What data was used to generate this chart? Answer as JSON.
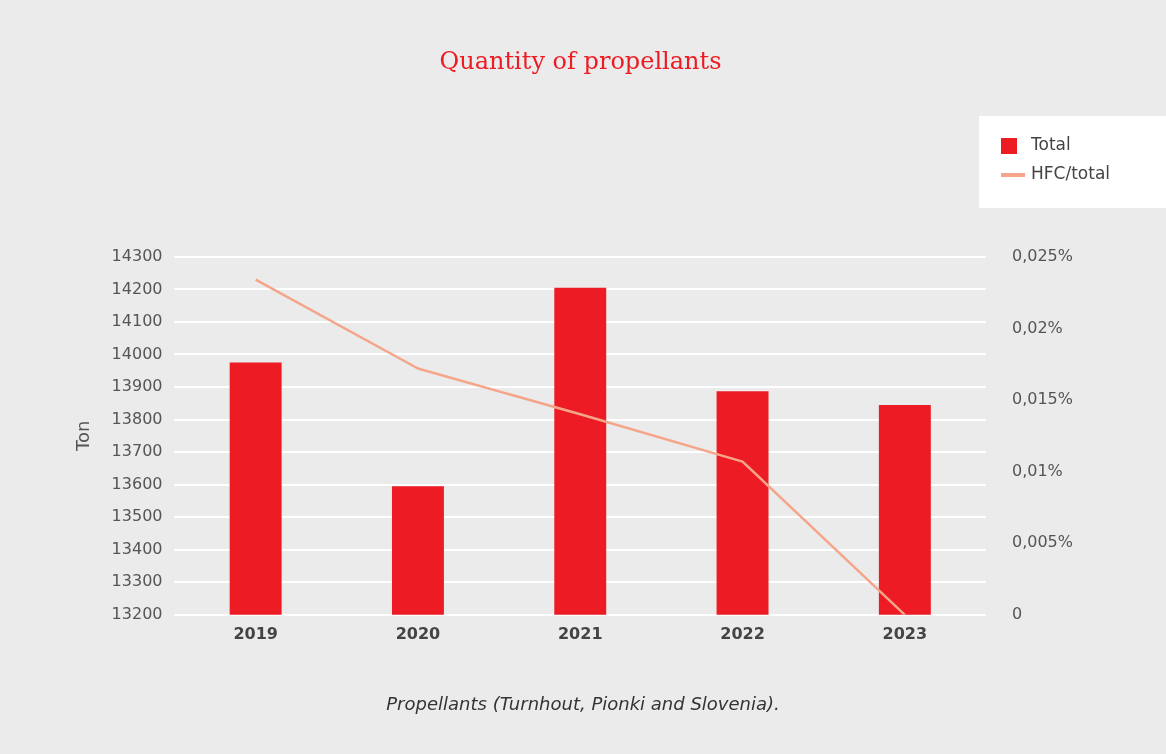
{
  "chart_data": {
    "type": "bar",
    "title": "Quantity of propellants",
    "ylabel": "Ton",
    "categories": [
      "2019",
      "2020",
      "2021",
      "2022",
      "2023"
    ],
    "series": [
      {
        "name": "Total",
        "color": "#ed1c24",
        "values": [
          13975,
          13595,
          14205,
          13887,
          13845
        ]
      },
      {
        "name": "HFC/total",
        "type": "line",
        "axis": "y2",
        "color": "#f5a58a",
        "values": [
          0.0234,
          0.0172,
          0.014,
          0.0107,
          0
        ]
      }
    ],
    "ylim": [
      13200,
      14300
    ],
    "yticks": [
      13200,
      13300,
      13400,
      13500,
      13600,
      13700,
      13800,
      13900,
      14000,
      14100,
      14200,
      14300
    ],
    "y2lim": [
      0,
      0.025
    ],
    "y2ticks": [
      {
        "value": 0,
        "label": "0"
      },
      {
        "value": 0.005,
        "label": "0,005%"
      },
      {
        "value": 0.01,
        "label": "0,01%"
      },
      {
        "value": 0.015,
        "label": "0,015%"
      },
      {
        "value": 0.02,
        "label": "0,02%"
      },
      {
        "value": 0.025,
        "label": "0,025%"
      }
    ],
    "grid": "y",
    "legend": "top right",
    "marker": "none",
    "line_style": "solid",
    "annotations": [
      "Propellants (Turnhout, Pionki and Slovenia)."
    ]
  }
}
